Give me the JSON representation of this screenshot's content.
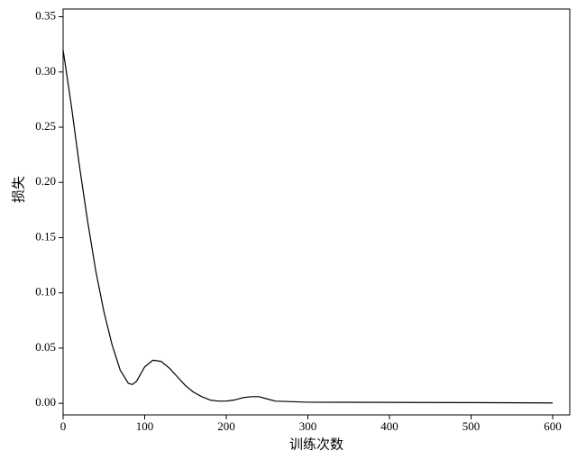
{
  "chart_data": {
    "type": "line",
    "x_label": "训练次数",
    "y_label": "损失",
    "x": [
      0,
      10,
      20,
      30,
      40,
      50,
      60,
      70,
      80,
      85,
      90,
      100,
      110,
      120,
      130,
      140,
      150,
      160,
      170,
      180,
      190,
      200,
      210,
      220,
      230,
      240,
      250,
      260,
      280,
      300,
      400,
      500,
      600
    ],
    "series": [
      {
        "name": "损失",
        "color": "#000000",
        "values": [
          0.32,
          0.27,
          0.215,
          0.165,
          0.12,
          0.083,
          0.053,
          0.03,
          0.018,
          0.017,
          0.02,
          0.033,
          0.039,
          0.038,
          0.032,
          0.024,
          0.016,
          0.01,
          0.006,
          0.003,
          0.002,
          0.002,
          0.003,
          0.005,
          0.006,
          0.006,
          0.004,
          0.002,
          0.0015,
          0.001,
          0.0008,
          0.0006,
          0.0003
        ]
      }
    ],
    "xlim": [
      0,
      621
    ],
    "ylim": [
      -0.0105,
      0.357
    ],
    "xticks": [
      0,
      100,
      200,
      300,
      400,
      500,
      600
    ],
    "yticks": [
      {
        "value": 0,
        "label": "0.00"
      },
      0.05,
      {
        "value": 0.1,
        "label": "0.10"
      },
      0.15,
      {
        "value": 0.2,
        "label": "0.20"
      },
      0.25,
      {
        "value": 0.3,
        "label": "0.30"
      },
      0.35
    ],
    "grid": false
  }
}
